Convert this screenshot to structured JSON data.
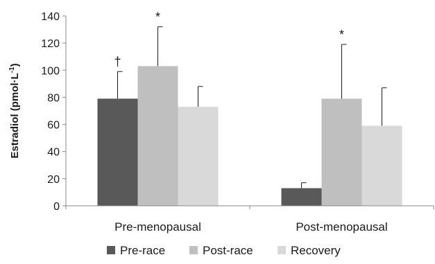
{
  "chart_data": {
    "type": "bar",
    "categories": [
      "Pre-menopausal",
      "Post-menopausal"
    ],
    "series": [
      {
        "name": "Pre-race",
        "values": [
          79,
          13
        ],
        "error": [
          20,
          4
        ],
        "color": "#595959"
      },
      {
        "name": "Post-race",
        "values": [
          103,
          79
        ],
        "error": [
          29,
          40
        ],
        "color": "#bfbfbf"
      },
      {
        "name": "Recovery",
        "values": [
          73,
          59
        ],
        "error": [
          15,
          28
        ],
        "color": "#d9d9d9"
      }
    ],
    "annotations": [
      {
        "category": 0,
        "series": 0,
        "symbol": "†"
      },
      {
        "category": 0,
        "series": 1,
        "symbol": "*"
      },
      {
        "category": 1,
        "series": 1,
        "symbol": "*"
      }
    ],
    "ylabel_main": "Estradiol (pmol·L",
    "ylabel_sup": "-1",
    "ylabel_close": ")",
    "yticks": [
      "0",
      "20",
      "40",
      "60",
      "80",
      "100",
      "120",
      "140"
    ],
    "ylim": [
      0,
      140
    ],
    "legend_position": "bottom",
    "grid": false
  }
}
